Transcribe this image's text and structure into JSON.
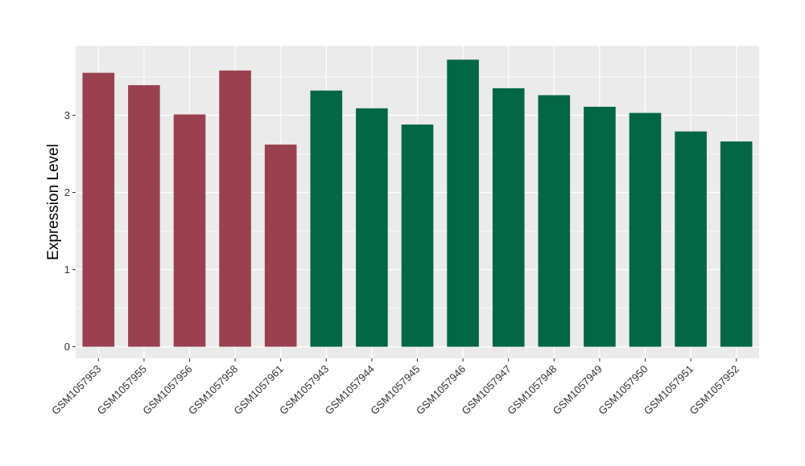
{
  "chart_data": {
    "type": "bar",
    "ylabel": "Expression Level",
    "xlabel": "",
    "ylim": [
      -0.15,
      3.9
    ],
    "yticks": [
      0,
      1,
      2,
      3
    ],
    "grid": true,
    "colors": {
      "group_a": "#9a4150",
      "group_b": "#036644",
      "panel": "#ebebeb",
      "grid": "#ffffff"
    },
    "categories": [
      "GSM1057953",
      "GSM1057955",
      "GSM1057956",
      "GSM1057958",
      "GSM1057961",
      "GSM1057943",
      "GSM1057944",
      "GSM1057945",
      "GSM1057946",
      "GSM1057947",
      "GSM1057948",
      "GSM1057949",
      "GSM1057950",
      "GSM1057951",
      "GSM1057952"
    ],
    "values": [
      3.55,
      3.39,
      3.01,
      3.58,
      2.62,
      3.32,
      3.09,
      2.88,
      3.72,
      3.35,
      3.26,
      3.11,
      3.03,
      2.79,
      2.66
    ],
    "bar_groups": [
      "group_a",
      "group_a",
      "group_a",
      "group_a",
      "group_a",
      "group_b",
      "group_b",
      "group_b",
      "group_b",
      "group_b",
      "group_b",
      "group_b",
      "group_b",
      "group_b",
      "group_b"
    ]
  }
}
